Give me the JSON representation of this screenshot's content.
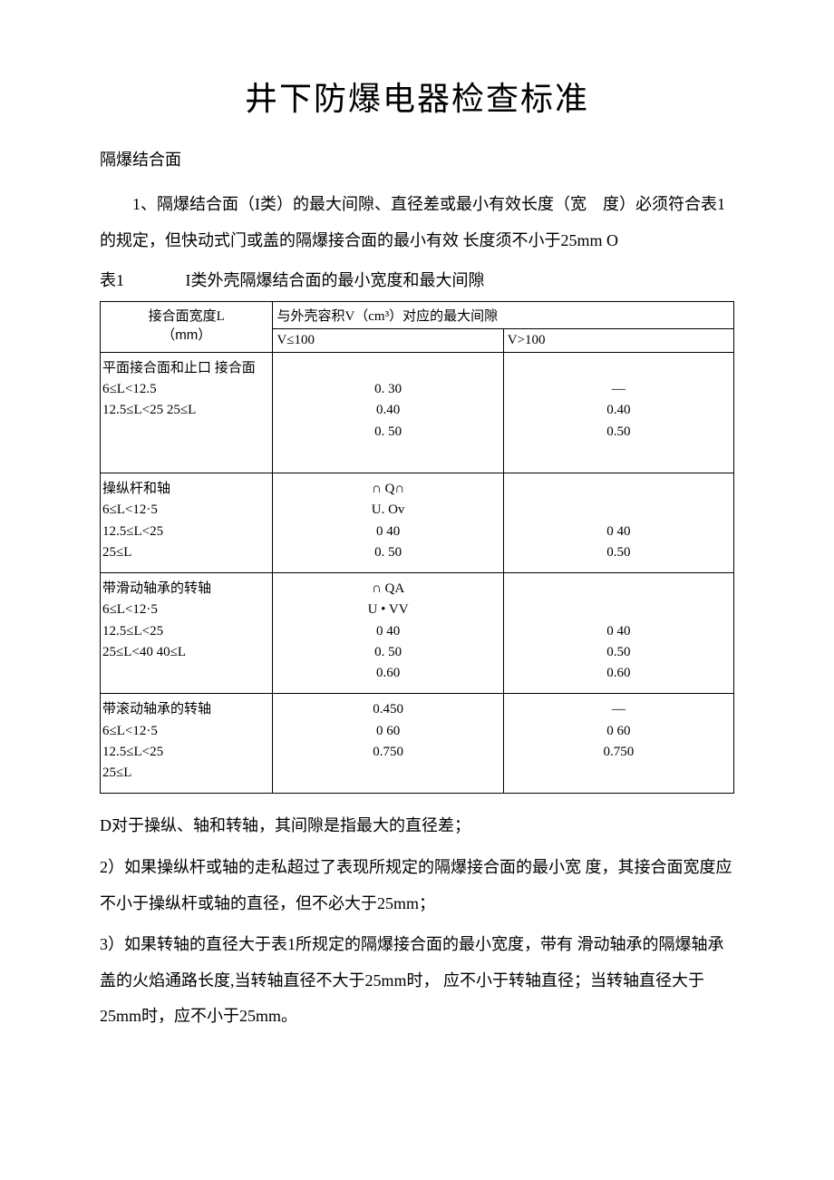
{
  "title": "井下防爆电器检查标准",
  "section_heading": "隔爆结合面",
  "para1": "1、隔爆结合面（I类）的最大间隙、直径差或最小有效长度（宽　度）必须符合表1的规定，但快动式门或盖的隔爆接合面的最小有效 长度须不小于25mm O",
  "table_caption_num": "表1",
  "table_caption_text": "I类外壳隔爆结合面的最小宽度和最大间隙",
  "table": {
    "header": {
      "col1_line1": "接合面宽度L",
      "col1_line2": "（mm）",
      "col_span": "与外壳容积V（cm³）对应的最大间隙",
      "sub1": "V≤100",
      "sub2": "V>100"
    },
    "rows": [
      {
        "label": "平面接合面和止口 接合面\n6≤L<12.5\n12.5≤L<25 25≤L",
        "v1": "\n0. 30\n0.40\n0. 50\n",
        "v2": "\n—\n0.40\n0.50\n"
      },
      {
        "label": "操纵杆和轴\n6≤L<12·5\n12.5≤L<25\n25≤L",
        "v1": "∩ Q∩\nU. Ov\n0 40\n0. 50",
        "v2": "\n\n0 40\n0.50"
      },
      {
        "label": "带滑动轴承的转轴\n6≤L<12·5\n12.5≤L<25\n25≤L<40 40≤L",
        "v1": "∩ QA\nU • VV\n0 40\n0. 50\n0.60",
        "v2": "\n\n0 40\n0.50\n0.60"
      },
      {
        "label": "带滚动轴承的转轴\n6≤L<12·5\n12.5≤L<25\n25≤L",
        "v1": "0.450\n0 60\n0.750",
        "v2": "—\n0 60\n0.750"
      }
    ]
  },
  "after1": "D对于操纵、轴和转轴，其间隙是指最大的直径差；",
  "after2": "2）如果操纵杆或轴的走私超过了表现所规定的隔爆接合面的最小宽 度，其接合面宽度应不小于操纵杆或轴的直径，但不必大于25mm；",
  "after3": "3）如果转轴的直径大于表1所规定的隔爆接合面的最小宽度，带有 滑动轴承的隔爆轴承盖的火焰通路长度,当转轴直径不大于25mm时， 应不小于转轴直径；当转轴直径大于25mm时，应不小于25mm。"
}
